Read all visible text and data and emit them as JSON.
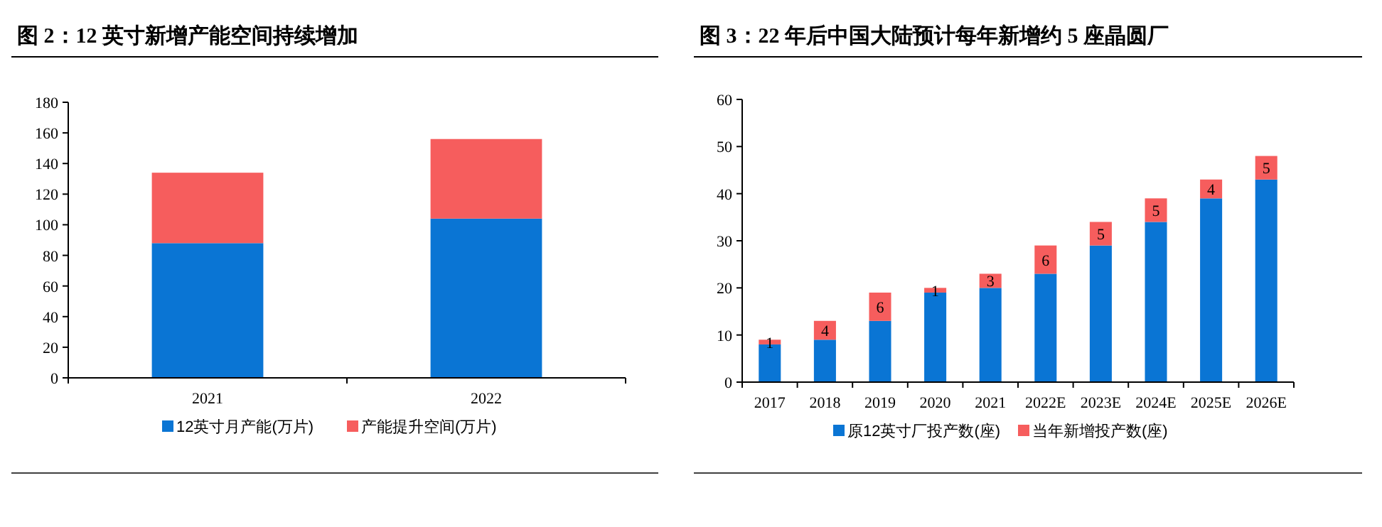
{
  "chart_data": [
    {
      "type": "bar",
      "title": "图 2：12 英寸新增产能空间持续增加",
      "categories": [
        "2021",
        "2022"
      ],
      "stacked": true,
      "ylim": [
        0,
        180
      ],
      "yticks": [
        0,
        20,
        40,
        60,
        80,
        100,
        120,
        140,
        160,
        180
      ],
      "legend": "bottom",
      "grid": false,
      "series": [
        {
          "name": "12英寸月产能(万片)",
          "color": "#0a75d4",
          "values": [
            88,
            104
          ]
        },
        {
          "name": "产能提升空间(万片)",
          "color": "#f65d5d",
          "values": [
            46,
            52
          ]
        }
      ]
    },
    {
      "type": "bar",
      "title": "图 3：22 年后中国大陆预计每年新增约 5 座晶圆厂",
      "categories": [
        "2017",
        "2018",
        "2019",
        "2020",
        "2021",
        "2022E",
        "2023E",
        "2024E",
        "2025E",
        "2026E"
      ],
      "stacked": true,
      "ylim": [
        0,
        60
      ],
      "yticks": [
        0,
        10,
        20,
        30,
        40,
        50,
        60
      ],
      "legend": "bottom",
      "grid": false,
      "series": [
        {
          "name": "原12英寸厂投产数(座)",
          "color": "#0a75d4",
          "values": [
            8,
            9,
            13,
            19,
            20,
            23,
            29,
            34,
            39,
            43
          ]
        },
        {
          "name": "当年新增投产数(座)",
          "color": "#f65d5d",
          "values": [
            1,
            4,
            6,
            1,
            3,
            6,
            5,
            5,
            4,
            5
          ],
          "value_labels": [
            "1",
            "4",
            "6",
            "1",
            "3",
            "6",
            "5",
            "5",
            "4",
            "5"
          ]
        }
      ]
    }
  ]
}
